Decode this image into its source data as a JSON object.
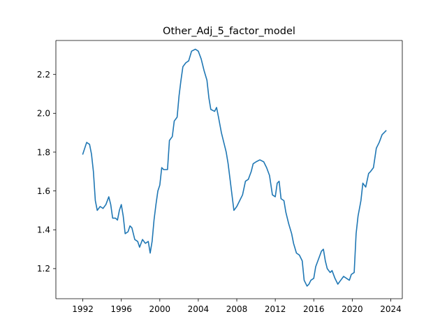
{
  "chart_data": {
    "type": "line",
    "title": "Other_Adj_5_factor_model",
    "xlabel": "",
    "ylabel": "",
    "xlim": [
      1989.2,
      2025.2
    ],
    "ylim": [
      1.045,
      2.375
    ],
    "x_ticks": [
      1992,
      1996,
      2000,
      2004,
      2008,
      2012,
      2016,
      2020,
      2024
    ],
    "x_tick_labels": [
      "1992",
      "1996",
      "2000",
      "2004",
      "2008",
      "2012",
      "2016",
      "2020",
      "2024"
    ],
    "y_ticks": [
      1.2,
      1.4,
      1.6,
      1.8,
      2.0,
      2.2
    ],
    "y_tick_labels": [
      "1.2",
      "1.4",
      "1.6",
      "1.8",
      "2.0",
      "2.2"
    ],
    "grid": false,
    "legend": "none",
    "series": [
      {
        "color": "#1f77b4",
        "points": [
          [
            1992.0,
            1.79
          ],
          [
            1992.2,
            1.82
          ],
          [
            1992.4,
            1.85
          ],
          [
            1992.7,
            1.84
          ],
          [
            1992.9,
            1.79
          ],
          [
            1993.1,
            1.7
          ],
          [
            1993.3,
            1.55
          ],
          [
            1993.5,
            1.5
          ],
          [
            1993.8,
            1.52
          ],
          [
            1994.1,
            1.51
          ],
          [
            1994.4,
            1.53
          ],
          [
            1994.7,
            1.57
          ],
          [
            1994.9,
            1.53
          ],
          [
            1995.1,
            1.46
          ],
          [
            1995.4,
            1.46
          ],
          [
            1995.6,
            1.45
          ],
          [
            1995.8,
            1.5
          ],
          [
            1996.0,
            1.53
          ],
          [
            1996.2,
            1.47
          ],
          [
            1996.4,
            1.38
          ],
          [
            1996.7,
            1.39
          ],
          [
            1996.9,
            1.42
          ],
          [
            1997.1,
            1.41
          ],
          [
            1997.4,
            1.35
          ],
          [
            1997.7,
            1.34
          ],
          [
            1997.9,
            1.31
          ],
          [
            1998.2,
            1.35
          ],
          [
            1998.5,
            1.33
          ],
          [
            1998.8,
            1.34
          ],
          [
            1999.0,
            1.28
          ],
          [
            1999.2,
            1.34
          ],
          [
            1999.4,
            1.45
          ],
          [
            1999.6,
            1.53
          ],
          [
            1999.8,
            1.6
          ],
          [
            2000.0,
            1.63
          ],
          [
            2000.2,
            1.72
          ],
          [
            2000.4,
            1.71
          ],
          [
            2000.8,
            1.71
          ],
          [
            2001.0,
            1.86
          ],
          [
            2001.3,
            1.88
          ],
          [
            2001.5,
            1.96
          ],
          [
            2001.8,
            1.98
          ],
          [
            2002.0,
            2.09
          ],
          [
            2002.2,
            2.17
          ],
          [
            2002.4,
            2.24
          ],
          [
            2002.7,
            2.26
          ],
          [
            2003.0,
            2.27
          ],
          [
            2003.3,
            2.32
          ],
          [
            2003.7,
            2.33
          ],
          [
            2004.0,
            2.32
          ],
          [
            2004.3,
            2.28
          ],
          [
            2004.6,
            2.22
          ],
          [
            2004.9,
            2.17
          ],
          [
            2005.1,
            2.08
          ],
          [
            2005.3,
            2.02
          ],
          [
            2005.7,
            2.01
          ],
          [
            2005.9,
            2.03
          ],
          [
            2006.1,
            1.98
          ],
          [
            2006.4,
            1.9
          ],
          [
            2006.7,
            1.84
          ],
          [
            2006.9,
            1.8
          ],
          [
            2007.1,
            1.74
          ],
          [
            2007.3,
            1.66
          ],
          [
            2007.5,
            1.58
          ],
          [
            2007.7,
            1.5
          ],
          [
            2008.0,
            1.52
          ],
          [
            2008.3,
            1.55
          ],
          [
            2008.6,
            1.58
          ],
          [
            2008.9,
            1.65
          ],
          [
            2009.2,
            1.66
          ],
          [
            2009.5,
            1.7
          ],
          [
            2009.7,
            1.74
          ],
          [
            2010.0,
            1.75
          ],
          [
            2010.4,
            1.76
          ],
          [
            2010.8,
            1.75
          ],
          [
            2011.1,
            1.72
          ],
          [
            2011.4,
            1.68
          ],
          [
            2011.7,
            1.58
          ],
          [
            2012.0,
            1.57
          ],
          [
            2012.2,
            1.64
          ],
          [
            2012.4,
            1.65
          ],
          [
            2012.6,
            1.56
          ],
          [
            2012.9,
            1.55
          ],
          [
            2013.1,
            1.49
          ],
          [
            2013.4,
            1.43
          ],
          [
            2013.7,
            1.38
          ],
          [
            2013.9,
            1.33
          ],
          [
            2014.2,
            1.28
          ],
          [
            2014.5,
            1.27
          ],
          [
            2014.8,
            1.24
          ],
          [
            2015.0,
            1.14
          ],
          [
            2015.3,
            1.11
          ],
          [
            2015.5,
            1.12
          ],
          [
            2015.7,
            1.14
          ],
          [
            2016.0,
            1.15
          ],
          [
            2016.2,
            1.21
          ],
          [
            2016.5,
            1.25
          ],
          [
            2016.8,
            1.29
          ],
          [
            2017.0,
            1.3
          ],
          [
            2017.2,
            1.24
          ],
          [
            2017.4,
            1.2
          ],
          [
            2017.7,
            1.18
          ],
          [
            2017.9,
            1.19
          ],
          [
            2018.2,
            1.15
          ],
          [
            2018.5,
            1.12
          ],
          [
            2018.8,
            1.14
          ],
          [
            2019.1,
            1.16
          ],
          [
            2019.4,
            1.15
          ],
          [
            2019.7,
            1.14
          ],
          [
            2019.9,
            1.17
          ],
          [
            2020.2,
            1.18
          ],
          [
            2020.4,
            1.38
          ],
          [
            2020.6,
            1.47
          ],
          [
            2020.9,
            1.55
          ],
          [
            2021.1,
            1.64
          ],
          [
            2021.4,
            1.62
          ],
          [
            2021.7,
            1.69
          ],
          [
            2021.9,
            1.7
          ],
          [
            2022.2,
            1.72
          ],
          [
            2022.5,
            1.82
          ],
          [
            2022.8,
            1.85
          ],
          [
            2023.1,
            1.89
          ],
          [
            2023.3,
            1.9
          ],
          [
            2023.5,
            1.91
          ]
        ]
      }
    ]
  }
}
